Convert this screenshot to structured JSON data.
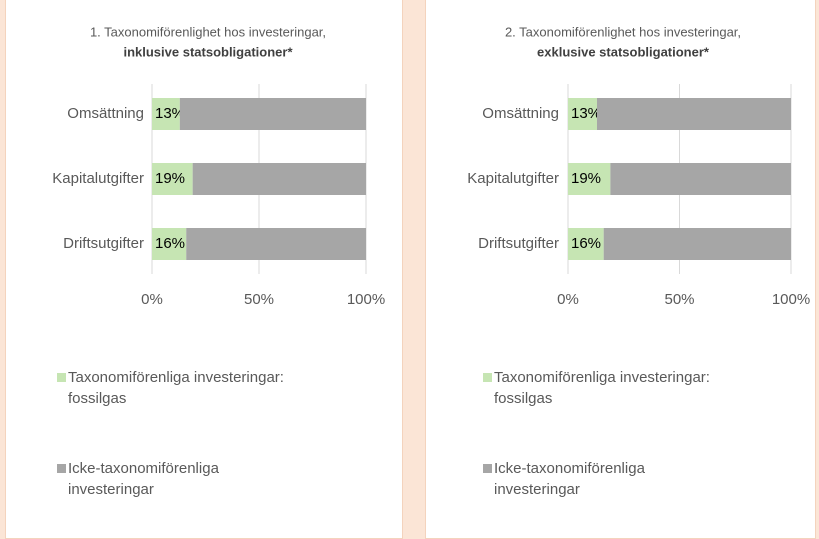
{
  "chart_data": [
    {
      "type": "stacked-bar-horizontal",
      "title": "1. Taxonomiförenlighet hos investeringar,",
      "subtitle": "inklusive statsobligationer*",
      "categories": [
        "Omsättning",
        "Kapitalutgifter",
        "Driftsutgifter"
      ],
      "series": [
        {
          "name": "Taxonomiförenliga investeringar: fossilgas",
          "color": "#c6e5b3",
          "values": [
            13,
            19,
            16
          ],
          "value_labels": [
            "13%",
            "19%",
            "16%"
          ]
        },
        {
          "name": "Icke-taxonomiförenliga investeringar",
          "color": "#a6a6a6",
          "values": [
            87,
            81,
            84
          ]
        }
      ],
      "xlim": [
        0,
        100
      ],
      "xticks": [
        {
          "value": 0,
          "label": "0%"
        },
        {
          "value": 50,
          "label": "50%"
        },
        {
          "value": 100,
          "label": "100%"
        }
      ],
      "grid": true
    },
    {
      "type": "stacked-bar-horizontal",
      "title": "2. Taxonomiförenlighet hos investeringar,",
      "subtitle": "exklusive statsobligationer*",
      "categories": [
        "Omsättning",
        "Kapitalutgifter",
        "Driftsutgifter"
      ],
      "series": [
        {
          "name": "Taxonomiförenliga investeringar: fossilgas",
          "color": "#c6e5b3",
          "values": [
            13,
            19,
            16
          ],
          "value_labels": [
            "13%",
            "19%",
            "16%"
          ]
        },
        {
          "name": "Icke-taxonomiförenliga investeringar",
          "color": "#a6a6a6",
          "values": [
            87,
            81,
            84
          ]
        }
      ],
      "xlim": [
        0,
        100
      ],
      "xticks": [
        {
          "value": 0,
          "label": "0%"
        },
        {
          "value": 50,
          "label": "50%"
        },
        {
          "value": 100,
          "label": "100%"
        }
      ],
      "grid": true
    }
  ]
}
